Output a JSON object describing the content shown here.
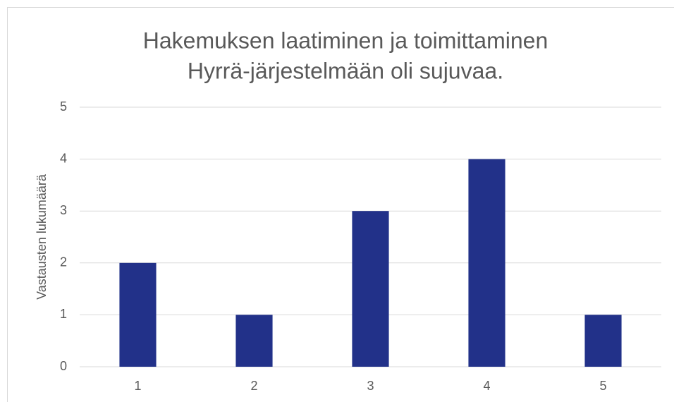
{
  "chart_data": {
    "type": "bar",
    "title": [
      "Hakemuksen laatiminen ja toimittaminen",
      "Hyrrä-järjestelmään oli sujuvaa."
    ],
    "y_label": "Vastausten lukumäärä",
    "categories": [
      "1",
      "2",
      "3",
      "4",
      "5"
    ],
    "values": [
      2,
      1,
      3,
      4,
      1
    ],
    "color": "#223189",
    "ylim": [
      0,
      5
    ],
    "yticks": [
      0,
      1,
      2,
      3,
      4,
      5
    ],
    "grid": true
  }
}
